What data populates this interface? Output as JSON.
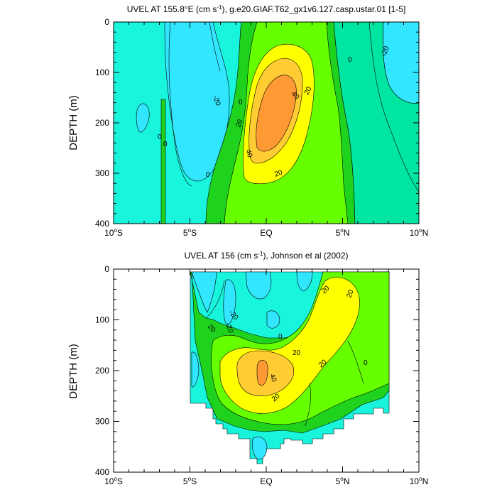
{
  "palette": {
    "cyan": "#33e6ff",
    "aqua": "#19f5dd",
    "teal_green": "#00e6a0",
    "green": "#1ed21e",
    "light_green": "#66ff00",
    "yellow": "#ffff00",
    "light_orange": "#ffcc33",
    "orange": "#ff9933",
    "line": "#000000"
  },
  "chart_data": [
    {
      "type": "contour",
      "title_main": "UVEL AT 155.8°E (cm s",
      "title_sup": "-1",
      "title_rest": "), g.e20.GIAF.T62_gx1v6.127.casp.ustar.01 [1-5]",
      "ylabel": "DEPTH (m)",
      "xlim": [
        -10,
        10
      ],
      "ylim": [
        400,
        0
      ],
      "x_ticks": [
        {
          "value": -10,
          "main": "10",
          "deg": "o",
          "hem": "S"
        },
        {
          "value": -5,
          "main": "5",
          "deg": "o",
          "hem": "S"
        },
        {
          "value": 0,
          "main": "EQ",
          "deg": "",
          "hem": ""
        },
        {
          "value": 5,
          "main": "5",
          "deg": "o",
          "hem": "N"
        },
        {
          "value": 10,
          "main": "10",
          "deg": "o",
          "hem": "N"
        }
      ],
      "y_ticks": [
        "0",
        "100",
        "200",
        "300",
        "400"
      ],
      "contour_labels": [
        "-20",
        "-20",
        "0",
        "0",
        "0",
        "0",
        "0",
        "20",
        "20",
        "20",
        "40",
        "40"
      ]
    },
    {
      "type": "contour",
      "title_main": "UVEL AT 156 (cm s",
      "title_sup": "-1",
      "title_rest": "), Johnson et al (2002)",
      "ylabel": "DEPTH (m)",
      "xlim": [
        -10,
        10
      ],
      "ylim": [
        400,
        0
      ],
      "x_ticks": [
        {
          "value": -10,
          "main": "10",
          "deg": "o",
          "hem": "S"
        },
        {
          "value": -5,
          "main": "5",
          "deg": "o",
          "hem": "S"
        },
        {
          "value": 0,
          "main": "EQ",
          "deg": "",
          "hem": ""
        },
        {
          "value": 5,
          "main": "5",
          "deg": "o",
          "hem": "N"
        },
        {
          "value": 10,
          "main": "10",
          "deg": "o",
          "hem": "N"
        }
      ],
      "y_ticks": [
        "0",
        "100",
        "200",
        "300",
        "400"
      ],
      "contour_labels": [
        "-20",
        "-20",
        "0",
        "0",
        "20",
        "20",
        "20",
        "20",
        "20",
        "20",
        "40"
      ]
    }
  ]
}
